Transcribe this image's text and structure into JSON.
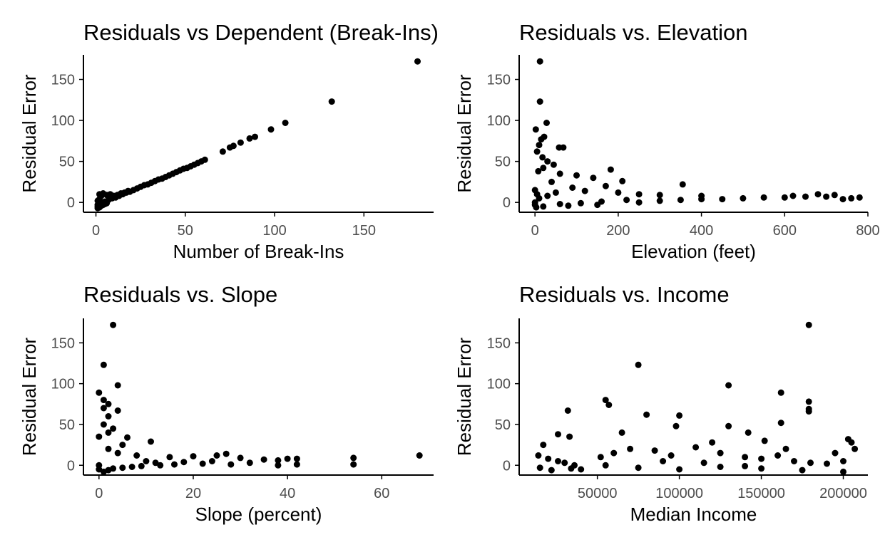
{
  "chart_data": [
    {
      "type": "scatter",
      "title": "Residuals vs Dependent (Break-Ins)",
      "xlabel": "Number of Break-Ins",
      "ylabel": "Residual Error",
      "xlim": [
        -7,
        189
      ],
      "ylim": [
        -12,
        180
      ],
      "xticks": [
        0,
        50,
        100,
        150
      ],
      "yticks": [
        0,
        50,
        100,
        150
      ],
      "xtick_labels": [
        "0",
        "50",
        "100",
        "150"
      ],
      "ytick_labels": [
        "0",
        "50",
        "100",
        "150"
      ],
      "grid": false,
      "legend": "none",
      "points": [
        [
          180,
          172
        ],
        [
          132,
          123
        ],
        [
          106,
          97
        ],
        [
          98,
          89
        ],
        [
          89,
          80
        ],
        [
          86,
          78
        ],
        [
          81,
          73
        ],
        [
          77,
          69
        ],
        [
          75,
          67
        ],
        [
          71,
          62
        ],
        [
          61,
          52
        ],
        [
          59,
          50
        ],
        [
          57,
          48
        ],
        [
          55,
          46
        ],
        [
          53,
          44
        ],
        [
          51,
          42
        ],
        [
          49,
          41
        ],
        [
          47,
          39
        ],
        [
          45,
          37
        ],
        [
          43,
          35
        ],
        [
          41,
          33
        ],
        [
          39,
          31
        ],
        [
          37,
          29
        ],
        [
          35,
          28
        ],
        [
          33,
          26
        ],
        [
          31,
          24
        ],
        [
          29,
          22
        ],
        [
          27,
          21
        ],
        [
          25,
          19
        ],
        [
          23,
          17
        ],
        [
          21,
          15
        ],
        [
          19,
          13
        ],
        [
          17,
          12
        ],
        [
          15,
          10
        ],
        [
          13,
          8
        ],
        [
          11,
          6
        ],
        [
          9,
          5
        ],
        [
          7,
          3
        ],
        [
          5,
          1
        ],
        [
          3,
          -1
        ],
        [
          2,
          10
        ],
        [
          3,
          8
        ],
        [
          4,
          11
        ],
        [
          6,
          9
        ],
        [
          8,
          10
        ],
        [
          10,
          8
        ],
        [
          12,
          9
        ],
        [
          14,
          11
        ],
        [
          16,
          12
        ],
        [
          18,
          14
        ],
        [
          1,
          -3
        ],
        [
          1,
          -5
        ],
        [
          1,
          -7
        ],
        [
          2,
          -6
        ],
        [
          3,
          -4
        ],
        [
          4,
          -3
        ],
        [
          5,
          -2
        ],
        [
          6,
          -1
        ],
        [
          2,
          4
        ],
        [
          1,
          2
        ]
      ]
    },
    {
      "type": "scatter",
      "title": "Residuals vs. Elevation",
      "xlabel": "Elevation (feet)",
      "ylabel": "Residual Error",
      "xlim": [
        -38,
        800
      ],
      "ylim": [
        -12,
        180
      ],
      "xticks": [
        0,
        200,
        400,
        600,
        800
      ],
      "yticks": [
        0,
        50,
        100,
        150
      ],
      "xtick_labels": [
        "0",
        "200",
        "400",
        "600",
        "800"
      ],
      "ytick_labels": [
        "0",
        "50",
        "100",
        "150"
      ],
      "grid": false,
      "legend": "none",
      "points": [
        [
          12,
          172
        ],
        [
          12,
          123
        ],
        [
          28,
          97
        ],
        [
          2,
          89
        ],
        [
          22,
          80
        ],
        [
          15,
          77
        ],
        [
          10,
          70
        ],
        [
          58,
          67
        ],
        [
          68,
          67
        ],
        [
          5,
          62
        ],
        [
          18,
          55
        ],
        [
          30,
          50
        ],
        [
          45,
          46
        ],
        [
          20,
          42
        ],
        [
          182,
          40
        ],
        [
          8,
          38
        ],
        [
          60,
          35
        ],
        [
          100,
          33
        ],
        [
          140,
          30
        ],
        [
          210,
          26
        ],
        [
          355,
          22
        ],
        [
          170,
          20
        ],
        [
          40,
          25
        ],
        [
          0,
          15
        ],
        [
          5,
          10
        ],
        [
          10,
          5
        ],
        [
          0,
          -3
        ],
        [
          3,
          -6
        ],
        [
          20,
          -5
        ],
        [
          80,
          -4
        ],
        [
          150,
          -3
        ],
        [
          250,
          0
        ],
        [
          300,
          2
        ],
        [
          350,
          3
        ],
        [
          400,
          4
        ],
        [
          450,
          4
        ],
        [
          500,
          5
        ],
        [
          550,
          6
        ],
        [
          600,
          6
        ],
        [
          650,
          7
        ],
        [
          700,
          7
        ],
        [
          720,
          9
        ],
        [
          740,
          4
        ],
        [
          760,
          5
        ],
        [
          780,
          6
        ],
        [
          620,
          8
        ],
        [
          680,
          10
        ],
        [
          300,
          9
        ],
        [
          250,
          10
        ],
        [
          200,
          12
        ],
        [
          120,
          14
        ],
        [
          90,
          18
        ],
        [
          50,
          12
        ],
        [
          30,
          8
        ],
        [
          0,
          0
        ],
        [
          60,
          -2
        ],
        [
          110,
          -1
        ],
        [
          160,
          1
        ],
        [
          220,
          3
        ],
        [
          400,
          8
        ]
      ]
    },
    {
      "type": "scatter",
      "title": "Residuals vs. Slope",
      "xlabel": "Slope (percent)",
      "ylabel": "Residual Error",
      "xlim": [
        -3.3,
        71
      ],
      "ylim": [
        -12,
        180
      ],
      "xticks": [
        0,
        20,
        40,
        60
      ],
      "yticks": [
        0,
        50,
        100,
        150
      ],
      "xtick_labels": [
        "0",
        "20",
        "40",
        "60"
      ],
      "ytick_labels": [
        "0",
        "50",
        "100",
        "150"
      ],
      "grid": false,
      "legend": "none",
      "points": [
        [
          3,
          172
        ],
        [
          1,
          123
        ],
        [
          4,
          98
        ],
        [
          0,
          89
        ],
        [
          1,
          80
        ],
        [
          2,
          75
        ],
        [
          1,
          70
        ],
        [
          4,
          67
        ],
        [
          2,
          60
        ],
        [
          1,
          50
        ],
        [
          3,
          45
        ],
        [
          2,
          40
        ],
        [
          0,
          35
        ],
        [
          6,
          34
        ],
        [
          11,
          29
        ],
        [
          5,
          25
        ],
        [
          2,
          20
        ],
        [
          4,
          15
        ],
        [
          8,
          12
        ],
        [
          15,
          10
        ],
        [
          20,
          11
        ],
        [
          25,
          12
        ],
        [
          27,
          14
        ],
        [
          30,
          9
        ],
        [
          35,
          7
        ],
        [
          38,
          6
        ],
        [
          40,
          8
        ],
        [
          42,
          8
        ],
        [
          42,
          1
        ],
        [
          38,
          0
        ],
        [
          54,
          9
        ],
        [
          54,
          1
        ],
        [
          68,
          12
        ],
        [
          10,
          5
        ],
        [
          12,
          3
        ],
        [
          18,
          4
        ],
        [
          22,
          2
        ],
        [
          28,
          1
        ],
        [
          32,
          3
        ],
        [
          0,
          0
        ],
        [
          0,
          -5
        ],
        [
          1,
          -8
        ],
        [
          2,
          -6
        ],
        [
          3,
          -4
        ],
        [
          5,
          -3
        ],
        [
          7,
          -2
        ],
        [
          9,
          -1
        ],
        [
          13,
          0
        ],
        [
          16,
          1
        ],
        [
          24,
          5
        ]
      ]
    },
    {
      "type": "scatter",
      "title": "Residuals vs. Income",
      "xlabel": "Median Income",
      "ylabel": "Residual Error",
      "xlim": [
        2300,
        215000
      ],
      "ylim": [
        -12,
        180
      ],
      "xticks": [
        50000,
        100000,
        150000,
        200000
      ],
      "yticks": [
        0,
        50,
        100,
        150
      ],
      "xtick_labels": [
        "50000",
        "100000",
        "150000",
        "200000"
      ],
      "ytick_labels": [
        "0",
        "50",
        "100",
        "150"
      ],
      "grid": false,
      "legend": "none",
      "points": [
        [
          179000,
          172
        ],
        [
          75000,
          123
        ],
        [
          130000,
          98
        ],
        [
          162000,
          89
        ],
        [
          55000,
          80
        ],
        [
          179000,
          78
        ],
        [
          57000,
          74
        ],
        [
          179000,
          69
        ],
        [
          179000,
          66
        ],
        [
          32000,
          67
        ],
        [
          80000,
          62
        ],
        [
          100000,
          61
        ],
        [
          98000,
          48
        ],
        [
          162000,
          52
        ],
        [
          130000,
          48
        ],
        [
          142000,
          40
        ],
        [
          65000,
          40
        ],
        [
          120000,
          28
        ],
        [
          26000,
          38
        ],
        [
          33000,
          35
        ],
        [
          17000,
          25
        ],
        [
          14000,
          12
        ],
        [
          20000,
          8
        ],
        [
          26000,
          5
        ],
        [
          30000,
          3
        ],
        [
          36000,
          0
        ],
        [
          40000,
          -5
        ],
        [
          15000,
          -3
        ],
        [
          22000,
          -6
        ],
        [
          34000,
          -4
        ],
        [
          52000,
          10
        ],
        [
          60000,
          15
        ],
        [
          70000,
          20
        ],
        [
          85000,
          18
        ],
        [
          95000,
          12
        ],
        [
          110000,
          22
        ],
        [
          125000,
          15
        ],
        [
          140000,
          10
        ],
        [
          150000,
          8
        ],
        [
          160000,
          12
        ],
        [
          170000,
          5
        ],
        [
          180000,
          3
        ],
        [
          190000,
          2
        ],
        [
          200000,
          5
        ],
        [
          205000,
          28
        ],
        [
          203000,
          32
        ],
        [
          207000,
          20
        ],
        [
          195000,
          15
        ],
        [
          165000,
          20
        ],
        [
          152000,
          30
        ],
        [
          55000,
          0
        ],
        [
          75000,
          -3
        ],
        [
          100000,
          -5
        ],
        [
          125000,
          -2
        ],
        [
          150000,
          -4
        ],
        [
          175000,
          -6
        ],
        [
          200000,
          -8
        ],
        [
          90000,
          5
        ],
        [
          115000,
          3
        ],
        [
          140000,
          -1
        ]
      ]
    }
  ]
}
